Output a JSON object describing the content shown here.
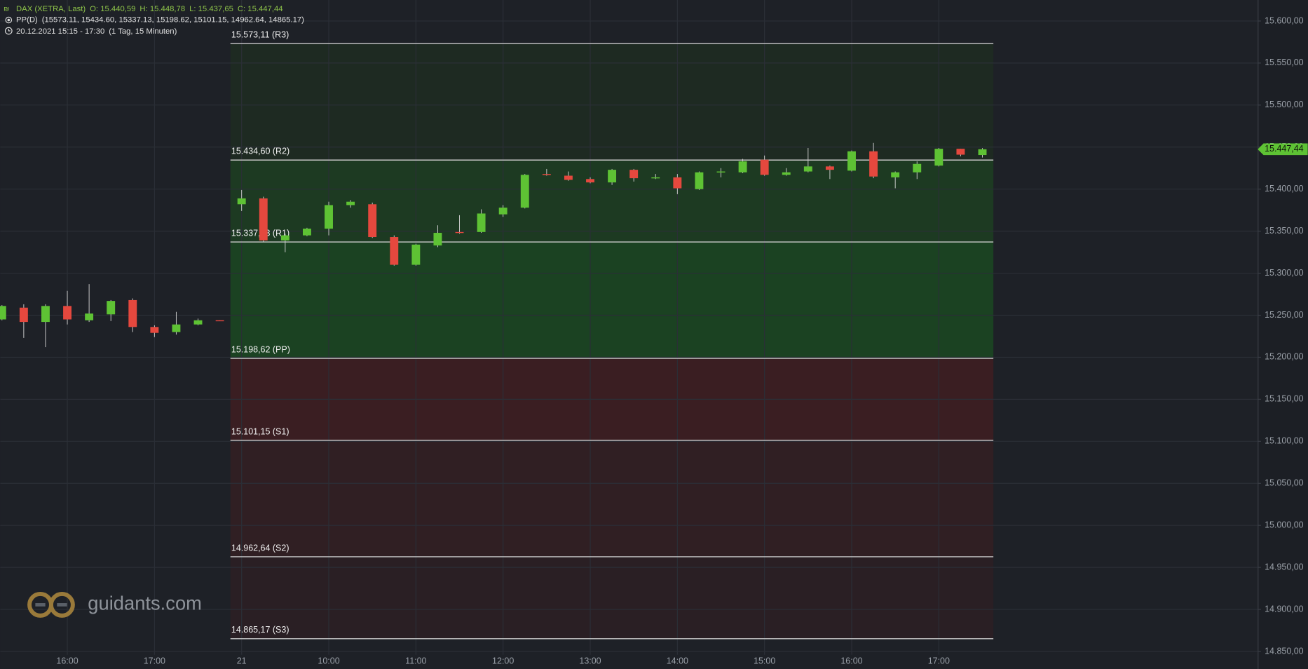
{
  "chart_data": {
    "type": "candlestick",
    "header": [
      "DAX (XETRA, Last)",
      "O: 15.440,59",
      "H: 15.448,78",
      "L: 15.437,65",
      "C: 15.447,44"
    ],
    "indicator": [
      "PP(D)",
      "(15573.11, 15434.60, 15337.13, 15198.62, 15101.15, 14962.64, 14865.17)"
    ],
    "period": [
      "20.12.2021 15:15 - 17:30",
      "(1 Tag, 15 Minuten)"
    ],
    "watermark": "guidants.com",
    "categories": [
      null,
      null,
      null,
      "16:00",
      null,
      null,
      null,
      "17:00",
      null,
      null,
      null,
      "21",
      null,
      null,
      null,
      "10:00",
      null,
      null,
      null,
      "11:00",
      null,
      null,
      null,
      "12:00",
      null,
      null,
      null,
      "13:00",
      null,
      null,
      null,
      "14:00",
      null,
      null,
      null,
      "15:00",
      null,
      null,
      null,
      "16:00",
      null,
      null,
      null,
      "17:00",
      null,
      null
    ],
    "open": [
      15245,
      15259,
      15242,
      15261,
      15244,
      15251,
      15268,
      15236,
      15230,
      15239,
      15244,
      15382,
      15389,
      15339,
      15345,
      15353,
      15381,
      15382,
      15343,
      15310,
      15333,
      15349,
      15349,
      15370,
      15378,
      15418,
      15416,
      15412,
      15408,
      15423,
      15413,
      15414,
      15400,
      15420,
      15420,
      15435,
      15417,
      15421,
      15427,
      15422,
      15445,
      15414,
      15420,
      15428,
      15448,
      15440.59
    ],
    "high": [
      15262,
      15263,
      15263,
      15279,
      15287,
      15268,
      15270,
      15238,
      15254,
      15246,
      15244,
      15399,
      15391,
      15347,
      15354,
      15385,
      15387,
      15384,
      15345,
      15335,
      15357,
      15369,
      15376,
      15381,
      15418,
      15424,
      15421,
      15414,
      15424,
      15424,
      15418,
      15418,
      15421,
      15425,
      15436,
      15440,
      15425,
      15449,
      15428,
      15446,
      15455,
      15421,
      15433,
      15449,
      15448,
      15448.78
    ],
    "low": [
      15244,
      15223,
      15212,
      15239,
      15242,
      15243,
      15230,
      15224,
      15227,
      15238,
      15243,
      15374,
      15337,
      15325,
      15344,
      15345,
      15378,
      15342,
      15309,
      15309,
      15331,
      15347,
      15348,
      15367,
      15377,
      15416,
      15410,
      15407,
      15405,
      15409,
      15412,
      15394,
      15399,
      15414,
      15419,
      15416,
      15416,
      15420,
      15412,
      15421,
      15413,
      15401,
      15412,
      15427,
      15439,
      15437.65
    ],
    "close": [
      15261,
      15242,
      15261,
      15245,
      15252,
      15267,
      15236,
      15229,
      15239,
      15244,
      15243,
      15389,
      15339,
      15345,
      15353,
      15381,
      15385,
      15343,
      15310,
      15334,
      15348,
      15348,
      15371,
      15378,
      15417,
      15417,
      15411,
      15408,
      15423,
      15413,
      15414,
      15401,
      15420,
      15421,
      15433,
      15417,
      15420,
      15427,
      15423,
      15445,
      15415,
      15420,
      15430,
      15448,
      15441,
      15447.44
    ],
    "up_color": "#5ec234",
    "down_color": "#e5483e",
    "pivots": [
      {
        "value": 15573.11,
        "label": "15.573,11 (R3)"
      },
      {
        "value": 15434.6,
        "label": "15.434,60 (R2)"
      },
      {
        "value": 15337.13,
        "label": "15.337,13 (R1)"
      },
      {
        "value": 15198.62,
        "label": "15.198,62 (PP)"
      },
      {
        "value": 15101.15,
        "label": "15.101,15 (S1)"
      },
      {
        "value": 14962.64,
        "label": "14.962,64 (S2)"
      },
      {
        "value": 14865.17,
        "label": "14.865,17 (S3)"
      }
    ],
    "zone_colors": [
      "#1e2a22",
      "#1d3a22",
      "#1b4222",
      "#3a1e22",
      "#301f23",
      "#2a1f24"
    ],
    "last_price": {
      "value": 15447.44,
      "label": "15.447,44"
    },
    "ylim": [
      14846,
      15625
    ],
    "yticks": [
      {
        "value": 14850,
        "label": "14.850,00"
      },
      {
        "value": 14900,
        "label": "14.900,00"
      },
      {
        "value": 14950,
        "label": "14.950,00"
      },
      {
        "value": 15000,
        "label": "15.000,00"
      },
      {
        "value": 15050,
        "label": "15.050,00"
      },
      {
        "value": 15100,
        "label": "15.100,00"
      },
      {
        "value": 15150,
        "label": "15.150,00"
      },
      {
        "value": 15200,
        "label": "15.200,00"
      },
      {
        "value": 15250,
        "label": "15.250,00"
      },
      {
        "value": 15300,
        "label": "15.300,00"
      },
      {
        "value": 15350,
        "label": "15.350,00"
      },
      {
        "value": 15400,
        "label": "15.400,00"
      },
      {
        "value": 15450,
        "label": "15.450,00"
      },
      {
        "value": 15500,
        "label": "15.500,00"
      },
      {
        "value": 15550,
        "label": "15.550,00"
      },
      {
        "value": 15600,
        "label": "15.600,00"
      }
    ],
    "grid": true
  }
}
